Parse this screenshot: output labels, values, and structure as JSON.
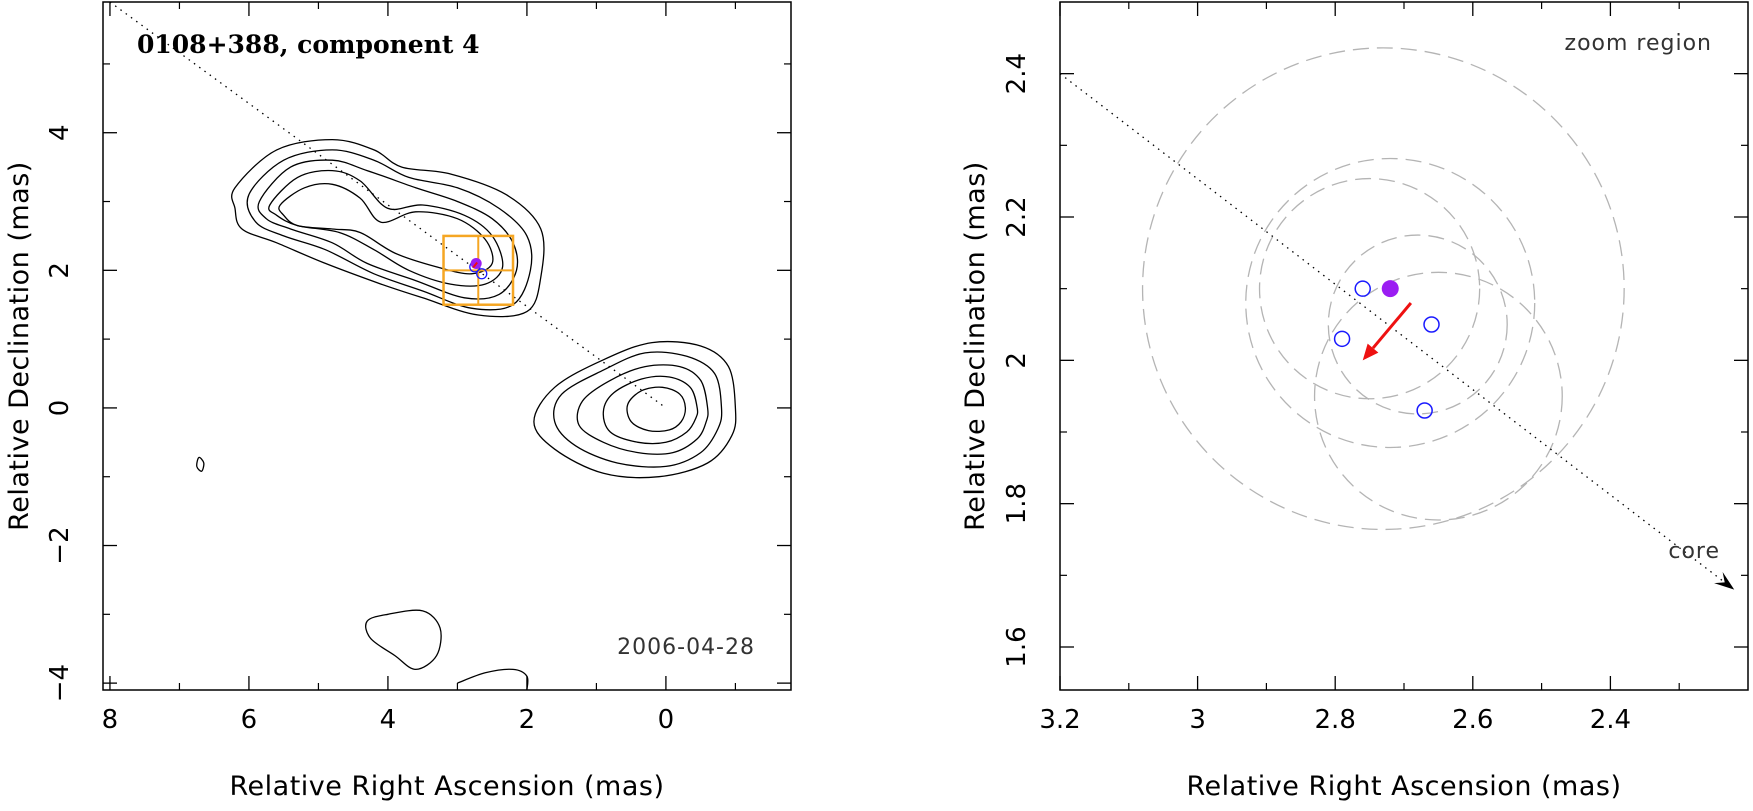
{
  "chart_data": [
    {
      "type": "contour",
      "title": "0108+388, component 4",
      "date_label": "2006-04-28",
      "xlabel": "Relative Right Ascension (mas)",
      "ylabel": "Relative Declination (mas)",
      "xlim": [
        8.1,
        -1.8
      ],
      "ylim": [
        -4.1,
        5.9
      ],
      "xticks": [
        8,
        6,
        4,
        2,
        0
      ],
      "xtick_labels": [
        "8",
        "6",
        "4",
        "2",
        "0"
      ],
      "yticks": [
        4,
        2,
        0,
        -2,
        -4
      ],
      "ytick_labels": [
        "4",
        "2",
        "0",
        "−2",
        "−4"
      ],
      "jet_axis": [
        [
          8.0,
          5.9
        ],
        [
          0.0,
          0.0
        ]
      ],
      "box_center": [
        2.7,
        2.0
      ],
      "box_half_width": 0.5,
      "component_filled": [
        2.73,
        2.1
      ],
      "components_open": [
        [
          2.75,
          2.05
        ],
        [
          2.65,
          1.95
        ]
      ],
      "colors": {
        "contour": "#000000",
        "box": "#f5a623",
        "filled": "#9b1df2",
        "open": "#1a1aff",
        "arrow": "#ee1111",
        "jet_axis": "#000000"
      },
      "contours": [
        {
          "name": "core-1",
          "pts": [
            [
              -1.0,
              0.0
            ],
            [
              -0.9,
              0.6
            ],
            [
              -0.5,
              0.9
            ],
            [
              0.2,
              0.95
            ],
            [
              0.9,
              0.7
            ],
            [
              1.6,
              0.3
            ],
            [
              1.9,
              -0.2
            ],
            [
              1.6,
              -0.6
            ],
            [
              0.9,
              -0.95
            ],
            [
              0.1,
              -1.0
            ],
            [
              -0.6,
              -0.8
            ],
            [
              -0.95,
              -0.4
            ]
          ]
        },
        {
          "name": "core-2",
          "pts": [
            [
              -0.8,
              0.0
            ],
            [
              -0.7,
              0.5
            ],
            [
              -0.3,
              0.75
            ],
            [
              0.3,
              0.8
            ],
            [
              0.9,
              0.55
            ],
            [
              1.5,
              0.2
            ],
            [
              1.6,
              -0.2
            ],
            [
              1.3,
              -0.55
            ],
            [
              0.7,
              -0.8
            ],
            [
              0.0,
              -0.85
            ],
            [
              -0.5,
              -0.65
            ],
            [
              -0.75,
              -0.3
            ]
          ]
        },
        {
          "name": "core-3",
          "pts": [
            [
              -0.6,
              0.0
            ],
            [
              -0.5,
              0.4
            ],
            [
              -0.2,
              0.6
            ],
            [
              0.3,
              0.6
            ],
            [
              0.8,
              0.4
            ],
            [
              1.2,
              0.1
            ],
            [
              1.25,
              -0.25
            ],
            [
              0.9,
              -0.5
            ],
            [
              0.4,
              -0.65
            ],
            [
              -0.1,
              -0.65
            ],
            [
              -0.45,
              -0.45
            ],
            [
              -0.58,
              -0.2
            ]
          ]
        },
        {
          "name": "core-4",
          "pts": [
            [
              -0.45,
              0.0
            ],
            [
              -0.35,
              0.3
            ],
            [
              -0.05,
              0.45
            ],
            [
              0.35,
              0.42
            ],
            [
              0.75,
              0.22
            ],
            [
              0.9,
              -0.05
            ],
            [
              0.8,
              -0.35
            ],
            [
              0.4,
              -0.5
            ],
            [
              0.0,
              -0.5
            ],
            [
              -0.3,
              -0.35
            ],
            [
              -0.43,
              -0.15
            ]
          ]
        },
        {
          "name": "core-5",
          "pts": [
            [
              -0.28,
              0.0
            ],
            [
              -0.2,
              0.2
            ],
            [
              0.05,
              0.3
            ],
            [
              0.35,
              0.25
            ],
            [
              0.55,
              0.05
            ],
            [
              0.5,
              -0.2
            ],
            [
              0.25,
              -0.33
            ],
            [
              -0.05,
              -0.32
            ],
            [
              -0.22,
              -0.2
            ]
          ]
        },
        {
          "name": "jet-1",
          "pts": [
            [
              6.2,
              3.2
            ],
            [
              5.6,
              3.75
            ],
            [
              4.8,
              3.9
            ],
            [
              4.2,
              3.75
            ],
            [
              3.8,
              3.5
            ],
            [
              3.1,
              3.4
            ],
            [
              2.3,
              3.1
            ],
            [
              1.8,
              2.6
            ],
            [
              1.8,
              1.9
            ],
            [
              2.0,
              1.4
            ],
            [
              2.7,
              1.35
            ],
            [
              3.5,
              1.6
            ],
            [
              4.1,
              1.8
            ],
            [
              4.9,
              2.1
            ],
            [
              5.6,
              2.4
            ],
            [
              6.1,
              2.6
            ],
            [
              6.2,
              2.9
            ]
          ]
        },
        {
          "name": "jet-2",
          "pts": [
            [
              6.0,
              3.1
            ],
            [
              5.5,
              3.6
            ],
            [
              4.8,
              3.75
            ],
            [
              4.2,
              3.6
            ],
            [
              3.7,
              3.35
            ],
            [
              3.0,
              3.2
            ],
            [
              2.4,
              2.9
            ],
            [
              2.0,
              2.5
            ],
            [
              1.95,
              2.0
            ],
            [
              2.2,
              1.5
            ],
            [
              2.8,
              1.45
            ],
            [
              3.5,
              1.7
            ],
            [
              4.2,
              1.95
            ],
            [
              4.9,
              2.3
            ],
            [
              5.5,
              2.5
            ],
            [
              5.9,
              2.7
            ]
          ]
        },
        {
          "name": "jet-3",
          "pts": [
            [
              5.85,
              3.0
            ],
            [
              5.4,
              3.5
            ],
            [
              4.8,
              3.6
            ],
            [
              4.3,
              3.45
            ],
            [
              3.6,
              3.2
            ],
            [
              3.0,
              3.0
            ],
            [
              2.5,
              2.75
            ],
            [
              2.2,
              2.4
            ],
            [
              2.15,
              2.0
            ],
            [
              2.4,
              1.65
            ],
            [
              2.9,
              1.6
            ],
            [
              3.6,
              1.85
            ],
            [
              4.3,
              2.1
            ],
            [
              4.8,
              2.4
            ],
            [
              5.4,
              2.6
            ],
            [
              5.75,
              2.75
            ]
          ]
        },
        {
          "name": "jet-4",
          "pts": [
            [
              5.7,
              2.95
            ],
            [
              5.3,
              3.35
            ],
            [
              4.8,
              3.45
            ],
            [
              4.4,
              3.3
            ],
            [
              4.0,
              2.9
            ],
            [
              3.5,
              2.95
            ],
            [
              2.9,
              2.8
            ],
            [
              2.5,
              2.5
            ],
            [
              2.35,
              2.05
            ],
            [
              2.6,
              1.8
            ],
            [
              3.1,
              1.8
            ],
            [
              3.7,
              2.0
            ],
            [
              4.2,
              2.3
            ],
            [
              4.7,
              2.55
            ],
            [
              5.3,
              2.65
            ],
            [
              5.6,
              2.8
            ]
          ]
        },
        {
          "name": "jet-5",
          "pts": [
            [
              5.55,
              2.95
            ],
            [
              5.2,
              3.2
            ],
            [
              4.8,
              3.25
            ],
            [
              4.4,
              3.05
            ],
            [
              4.1,
              2.7
            ],
            [
              3.6,
              2.85
            ],
            [
              3.0,
              2.75
            ],
            [
              2.6,
              2.45
            ],
            [
              2.5,
              2.1
            ],
            [
              2.8,
              1.95
            ],
            [
              3.3,
              2.05
            ],
            [
              3.9,
              2.25
            ],
            [
              4.4,
              2.55
            ],
            [
              4.8,
              2.6
            ],
            [
              5.3,
              2.65
            ],
            [
              5.5,
              2.8
            ]
          ]
        },
        {
          "name": "blob-west",
          "pts": [
            [
              6.72,
              -0.72
            ],
            [
              6.65,
              -0.8
            ],
            [
              6.68,
              -0.92
            ],
            [
              6.75,
              -0.85
            ]
          ]
        },
        {
          "name": "blob-south",
          "pts": [
            [
              4.0,
              -3.0
            ],
            [
              3.5,
              -2.95
            ],
            [
              3.25,
              -3.2
            ],
            [
              3.3,
              -3.6
            ],
            [
              3.6,
              -3.8
            ],
            [
              3.9,
              -3.6
            ],
            [
              4.25,
              -3.35
            ],
            [
              4.3,
              -3.1
            ]
          ]
        }
      ],
      "open_contours": [
        {
          "name": "south-edge-arc",
          "pts": [
            [
              3.0,
              -4.0
            ],
            [
              2.6,
              -3.85
            ],
            [
              2.2,
              -3.8
            ],
            [
              2.0,
              -3.9
            ],
            [
              2.0,
              -4.1
            ]
          ]
        }
      ]
    },
    {
      "type": "scatter",
      "title": "zoom region",
      "core_label": "core",
      "xlabel": "Relative Right Ascension (mas)",
      "ylabel": "Relative Declination (mas)",
      "xlim": [
        3.2,
        2.2
      ],
      "ylim": [
        1.54,
        2.5
      ],
      "xticks": [
        3.2,
        3.0,
        2.8,
        2.6,
        2.4
      ],
      "xtick_labels": [
        "3.2",
        "3",
        "2.8",
        "2.6",
        "2.4"
      ],
      "yticks": [
        2.4,
        2.2,
        2.0,
        1.8,
        1.6
      ],
      "ytick_labels": [
        "2.4",
        "2.2",
        "2",
        "1.8",
        "1.6"
      ],
      "jet_axis": [
        [
          3.2,
          2.4
        ],
        [
          2.22,
          1.68
        ]
      ],
      "filled_point": [
        2.72,
        2.1
      ],
      "open_points": [
        [
          2.76,
          2.1
        ],
        [
          2.79,
          2.03
        ],
        [
          2.66,
          2.05
        ],
        [
          2.67,
          1.93
        ]
      ],
      "arrow": {
        "from": [
          2.69,
          2.08
        ],
        "to": [
          2.76,
          2.0
        ]
      },
      "error_circles": [
        {
          "cx": 2.73,
          "cy": 2.1,
          "r": 0.35
        },
        {
          "cx": 2.72,
          "cy": 2.08,
          "r": 0.21
        },
        {
          "cx": 2.75,
          "cy": 2.1,
          "r": 0.16
        },
        {
          "cx": 2.65,
          "cy": 1.95,
          "r": 0.18
        },
        {
          "cx": 2.68,
          "cy": 2.05,
          "r": 0.13
        }
      ],
      "colors": {
        "filled": "#9b1df2",
        "open": "#1a1aff",
        "arrow": "#ee1111",
        "circle": "#b4b4b4"
      }
    }
  ]
}
